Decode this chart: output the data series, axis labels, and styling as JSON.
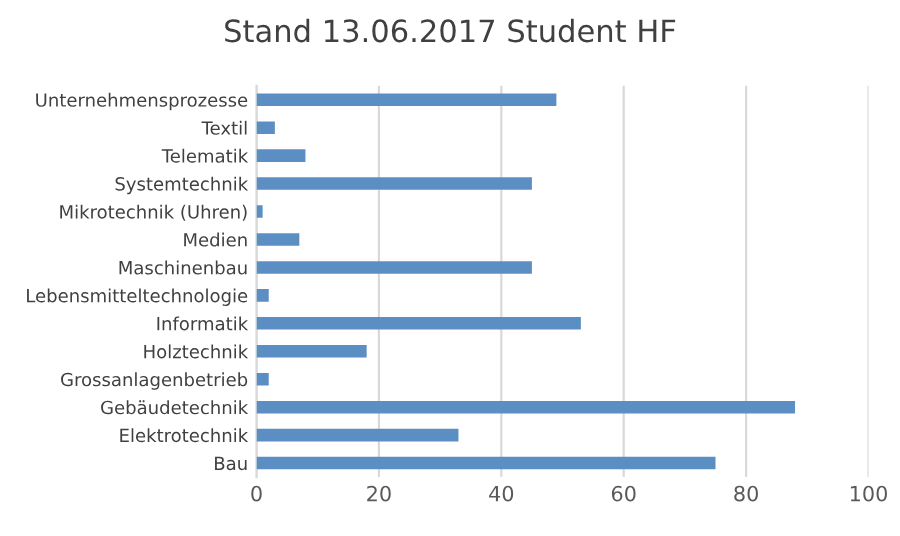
{
  "chart_data": {
    "type": "bar",
    "orientation": "horizontal",
    "title": "Stand 13.06.2017 Student HF",
    "categories": [
      "Unternehmensprozesse",
      "Textil",
      "Telematik",
      "Systemtechnik",
      "Mikrotechnik (Uhren)",
      "Medien",
      "Maschinenbau",
      "Lebensmitteltechnologie",
      "Informatik",
      "Holztechnik",
      "Grossanlagenbetrieb",
      "Gebäudetechnik",
      "Elektrotechnik",
      "Bau"
    ],
    "values": [
      49,
      3,
      8,
      45,
      1,
      7,
      45,
      2,
      53,
      18,
      2,
      88,
      33,
      75
    ],
    "color": "#5b8fc4",
    "xlim": [
      0,
      100
    ],
    "xticks": [
      0,
      20,
      40,
      60,
      80,
      100
    ],
    "grid": "x",
    "legend": false
  }
}
